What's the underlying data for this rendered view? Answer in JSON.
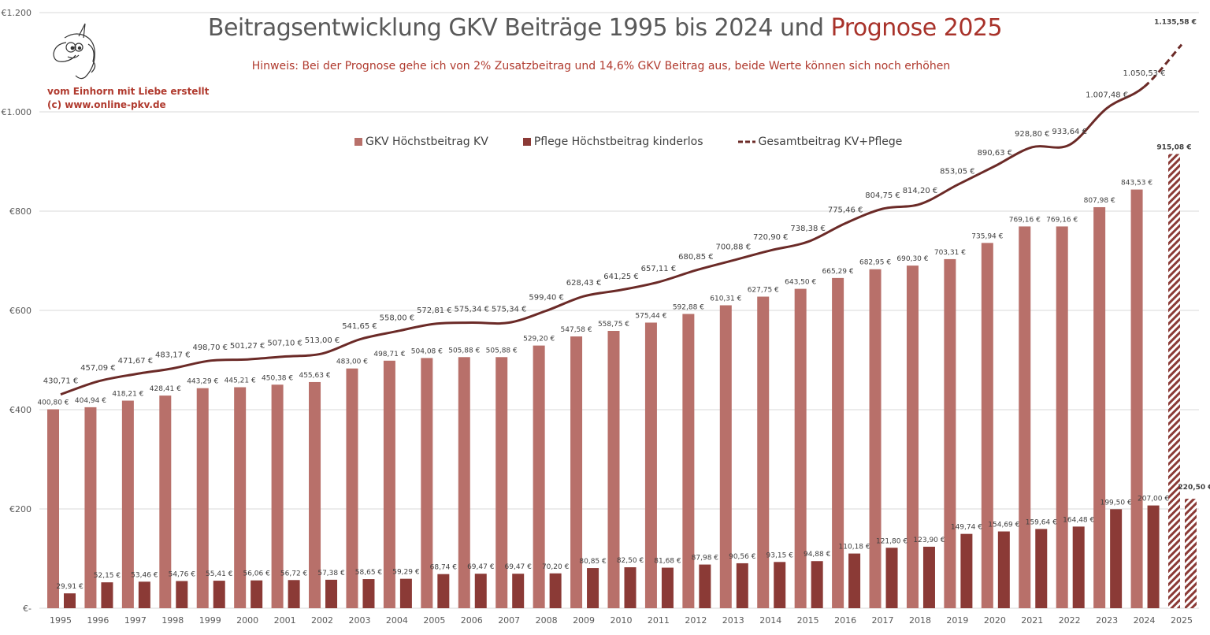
{
  "title_main": "Beitragsentwicklung GKV Beiträge 1995 bis 2024 und",
  "title_highlight": "Prognose 2025",
  "hint": "Hinweis: Bei der Prognose gehe ich von 2% Zusatzbeitrag und 14,6% GKV Beitrag aus, beide Werte können sich noch erhöhen",
  "credit_line1": "vom Einhorn mit Liebe erstellt",
  "credit_line2": "(c) www.online-pkv.de",
  "logo": "unicorn-head",
  "chart_data": {
    "type": "bar+line",
    "title": "Beitragsentwicklung GKV Beiträge 1995 bis 2024 und Prognose 2025",
    "categories": [
      "1995",
      "1996",
      "1997",
      "1998",
      "1999",
      "2000",
      "2001",
      "2002",
      "2003",
      "2004",
      "2005",
      "2006",
      "2007",
      "2008",
      "2009",
      "2010",
      "2011",
      "2012",
      "2013",
      "2014",
      "2015",
      "2016",
      "2017",
      "2018",
      "2019",
      "2020",
      "2021",
      "2022",
      "2023",
      "2024",
      "2025"
    ],
    "y_ticks": [
      "€-",
      "€200",
      "€400",
      "€600",
      "€800",
      "€1.000",
      "€1.200"
    ],
    "ylim": [
      0,
      1200
    ],
    "grid": true,
    "legend_position": "top-center",
    "forecast_category": "2025",
    "forecast_style": "hatched bars, dashed line",
    "series": [
      {
        "name": "GKV Höchstbeitrag KV",
        "type": "bar",
        "color": "#b8706a",
        "values": [
          400.8,
          404.94,
          418.21,
          428.41,
          443.29,
          445.21,
          450.38,
          455.63,
          483.0,
          498.71,
          504.08,
          505.88,
          505.88,
          529.2,
          547.58,
          558.75,
          575.44,
          592.88,
          610.31,
          627.75,
          643.5,
          665.29,
          682.95,
          690.3,
          703.31,
          735.94,
          769.16,
          769.16,
          807.98,
          843.53,
          915.08
        ],
        "labels": [
          "400,80 €",
          "404,94 €",
          "418,21 €",
          "428,41 €",
          "443,29 €",
          "445,21 €",
          "450,38 €",
          "455,63 €",
          "483,00 €",
          "498,71 €",
          "504,08 €",
          "505,88 €",
          "505,88 €",
          "529,20 €",
          "547,58 €",
          "558,75 €",
          "575,44 €",
          "592,88 €",
          "610,31 €",
          "627,75 €",
          "643,50 €",
          "665,29 €",
          "682,95 €",
          "690,30 €",
          "703,31 €",
          "735,94 €",
          "769,16 €",
          "769,16 €",
          "807,98 €",
          "843,53 €",
          "915,08 €"
        ]
      },
      {
        "name": "Pflege Höchstbeitrag kinderlos",
        "type": "bar",
        "color": "#8b3a36",
        "values": [
          29.91,
          52.15,
          53.46,
          54.76,
          55.41,
          56.06,
          56.72,
          57.38,
          58.65,
          59.29,
          68.74,
          69.47,
          69.47,
          70.2,
          80.85,
          82.5,
          81.68,
          87.98,
          90.56,
          93.15,
          94.88,
          110.18,
          121.8,
          123.9,
          149.74,
          154.69,
          159.64,
          164.48,
          199.5,
          207.0,
          220.5
        ],
        "labels": [
          "29,91 €",
          "52,15 €",
          "53,46 €",
          "54,76 €",
          "55,41 €",
          "56,06 €",
          "56,72 €",
          "57,38 €",
          "58,65 €",
          "59,29 €",
          "68,74 €",
          "69,47 €",
          "69,47 €",
          "70,20 €",
          "80,85 €",
          "82,50 €",
          "81,68 €",
          "87,98 €",
          "90,56 €",
          "93,15 €",
          "94,88 €",
          "110,18 €",
          "121,80 €",
          "123,90 €",
          "149,74 €",
          "154,69 €",
          "159,64 €",
          "164,48 €",
          "199,50 €",
          "207,00 €",
          "220,50 €"
        ]
      },
      {
        "name": "Gesamtbeitrag KV+Pflege",
        "type": "line",
        "color": "#6b2a27",
        "values": [
          430.71,
          457.09,
          471.67,
          483.17,
          498.7,
          501.27,
          507.1,
          513.0,
          541.65,
          558.0,
          572.81,
          575.34,
          575.34,
          599.4,
          628.43,
          641.25,
          657.11,
          680.85,
          700.88,
          720.9,
          738.38,
          775.46,
          804.75,
          814.2,
          853.05,
          890.63,
          928.8,
          933.64,
          1007.48,
          1050.53,
          1135.58
        ],
        "labels": [
          "430,71 €",
          "457,09 €",
          "471,67 €",
          "483,17 €",
          "498,70 €",
          "501,27 €",
          "507,10 €",
          "513,00 €",
          "541,65 €",
          "558,00 €",
          "572,81 €",
          "575,34 €",
          "575,34 €",
          "599,40 €",
          "628,43 €",
          "641,25 €",
          "657,11 €",
          "680,85 €",
          "700,88 €",
          "720,90 €",
          "738,38 €",
          "775,46 €",
          "804,75 €",
          "814,20 €",
          "853,05 €",
          "890,63 €",
          "928,80 €",
          "933,64 €",
          "1.007,48 €",
          "1.050,53 €",
          "1.135,58 €"
        ]
      }
    ]
  }
}
